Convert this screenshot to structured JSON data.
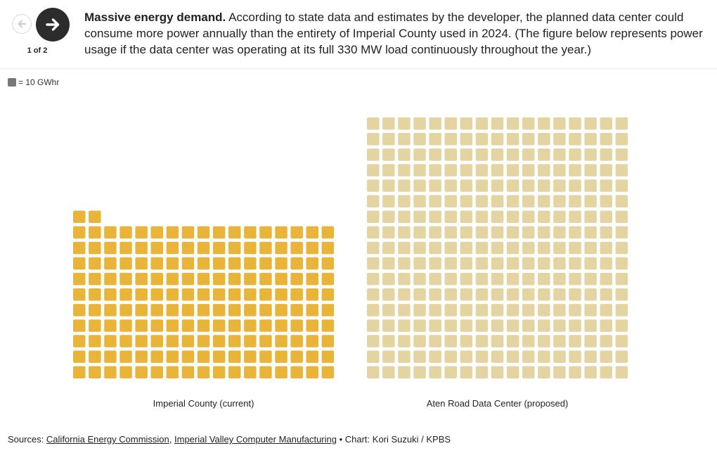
{
  "nav": {
    "counter": "1 of 2",
    "prev_label": "Previous",
    "next_label": "Next"
  },
  "caption": {
    "headline": "Massive energy demand.",
    "body": "According to state data and estimates by the developer, the planned data center could consume more power annually than the entirety of Imperial County used in 2024. (The figure below represents power usage if the data center was operating at its full 330 MW load continuously throughout the year.)"
  },
  "legend": {
    "label": "= 10 GWhr",
    "color": "#777777"
  },
  "chart_data": {
    "type": "waffle",
    "unit": "10 GWhr",
    "columns": 17,
    "series": [
      {
        "name": "Imperial County (current)",
        "squares": 172,
        "color": "#E8B53A"
      },
      {
        "name": "Aten Road Data Center (proposed)",
        "squares": 289,
        "color": "#E3D4A2"
      }
    ]
  },
  "sources": {
    "prefix": "Sources: ",
    "link1": "California Energy Commission",
    "separator": ", ",
    "link2": "Imperial Valley Computer Manufacturing",
    "credit": " • Chart: Kori Suzuki / KPBS"
  }
}
